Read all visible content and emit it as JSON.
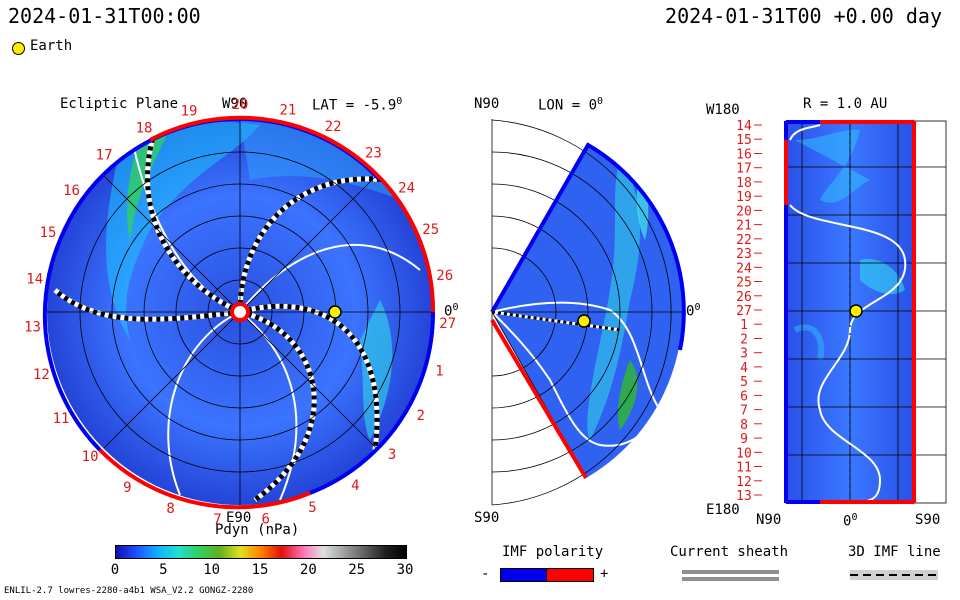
{
  "header": {
    "date_left": "2024-01-31T00:00",
    "date_right": "2024-01-31T00 +0.00 day",
    "earth_legend": "Earth"
  },
  "ecliptic": {
    "title": "Ecliptic Plane",
    "lat_label": "LAT = -5.9",
    "lat_deg": "0",
    "top_label": "W90",
    "bottom_label": "E90",
    "right_label": "0",
    "right_deg": "0",
    "carrington_numbers": [
      "20",
      "21",
      "22",
      "23",
      "24",
      "25",
      "26",
      "27",
      "1",
      "2",
      "3",
      "4",
      "5",
      "6",
      "7",
      "8",
      "9",
      "10",
      "11",
      "12",
      "13",
      "14",
      "15",
      "16",
      "17",
      "18",
      "19"
    ]
  },
  "meridional": {
    "top_label": "N90",
    "lon_label": "LON = 0",
    "lon_deg": "0",
    "right_label": "0",
    "right_deg": "0",
    "bottom_label": "S90"
  },
  "radial": {
    "r_label": "R = 1.0 AU",
    "top_left_label": "W180",
    "bottom_left_label": "E180",
    "bottom_labels": [
      "N90",
      "0",
      "S90"
    ],
    "bottom_deg": "0",
    "rows": [
      "14",
      "15",
      "16",
      "17",
      "18",
      "19",
      "20",
      "21",
      "22",
      "23",
      "24",
      "25",
      "26",
      "27",
      "1",
      "2",
      "3",
      "4",
      "5",
      "6",
      "7",
      "8",
      "9",
      "10",
      "11",
      "12",
      "13"
    ]
  },
  "colorbar": {
    "title": "Pdyn (nPa)",
    "ticks": [
      "0",
      "5",
      "10",
      "15",
      "20",
      "25",
      "30"
    ],
    "range": [
      0,
      30
    ],
    "colors": [
      "#1010b0",
      "#2050ff",
      "#10b0ff",
      "#20e0d0",
      "#30d060",
      "#60b020",
      "#e0e020",
      "#ff8000",
      "#e01010",
      "#ff70b0",
      "#e0e0e0",
      "#a0a0a0",
      "#606060",
      "#202020",
      "#000000"
    ]
  },
  "legends": {
    "imf_title": "IMF polarity",
    "imf_minus": "-",
    "imf_plus": "+",
    "imf_colors": [
      "#0000ee",
      "#ff0000"
    ],
    "sheath_title": "Current sheath",
    "imf_line_title": "3D IMF line"
  },
  "footer": {
    "left": "ENLIL-2.7 lowres-2280-a4b1 WSA_V2.2 GONGZ-2280"
  }
}
